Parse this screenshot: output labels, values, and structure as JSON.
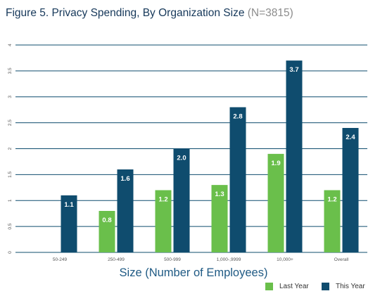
{
  "header": {
    "title": "Figure 5. Privacy Spending, By Organization Size",
    "n_label": "(N=3815)"
  },
  "colors": {
    "last_year": "#6abf4b",
    "this_year": "#0f4c6e",
    "grid": "#0f4c6e",
    "axis_title": "#1f5a84"
  },
  "chart_data": {
    "type": "bar",
    "categories": [
      "50-249",
      "250-499",
      "500-999",
      "1,000-,9999",
      "10,000+",
      "Overall"
    ],
    "series": [
      {
        "name": "Last Year",
        "values": [
          null,
          0.8,
          1.2,
          1.3,
          1.9,
          1.2
        ],
        "labels": [
          "",
          "0.8",
          "1.2",
          "1.3",
          "1.9",
          "1.2"
        ]
      },
      {
        "name": "This Year",
        "values": [
          1.1,
          1.6,
          2.0,
          2.8,
          3.7,
          2.4
        ],
        "labels": [
          "1.1",
          "1.6",
          "2.0",
          "2.8",
          "3.7",
          "2.4"
        ]
      }
    ],
    "y_ticks": [
      "0",
      "0.5",
      "1",
      "1.5",
      "2",
      "2.5",
      "3",
      "3.5",
      "4"
    ],
    "ylim": [
      0,
      4
    ],
    "xlabel": "Size (Number of Employees)",
    "ylabel": "",
    "grid": true,
    "legend_position": "bottom-right"
  }
}
